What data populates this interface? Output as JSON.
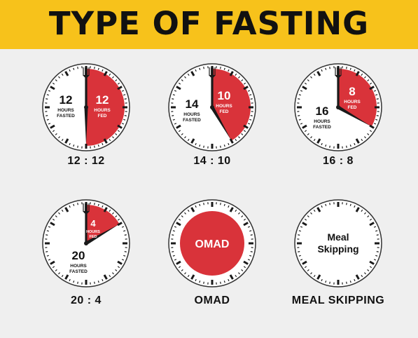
{
  "header": {
    "title": "TYPE OF FASTING"
  },
  "colors": {
    "banner": "#f7c21b",
    "fed": "#d9333a",
    "ink": "#1a1a1a",
    "face": "#ffffff"
  },
  "clocks": [
    {
      "caption": "12 : 12",
      "fed_hours": 12,
      "fasted": {
        "num": "12",
        "l1": "HOURS",
        "l2": "FASTED"
      },
      "fed": {
        "num": "12",
        "l1": "HOURS",
        "l2": "FED"
      }
    },
    {
      "caption": "14 : 10",
      "fed_hours": 10,
      "fasted": {
        "num": "14",
        "l1": "HOURS",
        "l2": "FASTED"
      },
      "fed": {
        "num": "10",
        "l1": "HOURS",
        "l2": "FED"
      }
    },
    {
      "caption": "16 : 8",
      "fed_hours": 8,
      "fasted": {
        "num": "16",
        "l1": "HOURS",
        "l2": "FASTED"
      },
      "fed": {
        "num": "8",
        "l1": "HOURS",
        "l2": "FED"
      }
    },
    {
      "caption": "20 : 4",
      "fed_hours": 4,
      "fasted": {
        "num": "20",
        "l1": "HOURS",
        "l2": "FASTED"
      },
      "fed": {
        "num": "4",
        "l1": "HOURS",
        "l2": "FED"
      }
    },
    {
      "caption": "OMAD",
      "center_label": "OMAD"
    },
    {
      "caption": "MEAL SKIPPING",
      "center_label_lines": [
        "Meal",
        "Skipping"
      ]
    }
  ]
}
